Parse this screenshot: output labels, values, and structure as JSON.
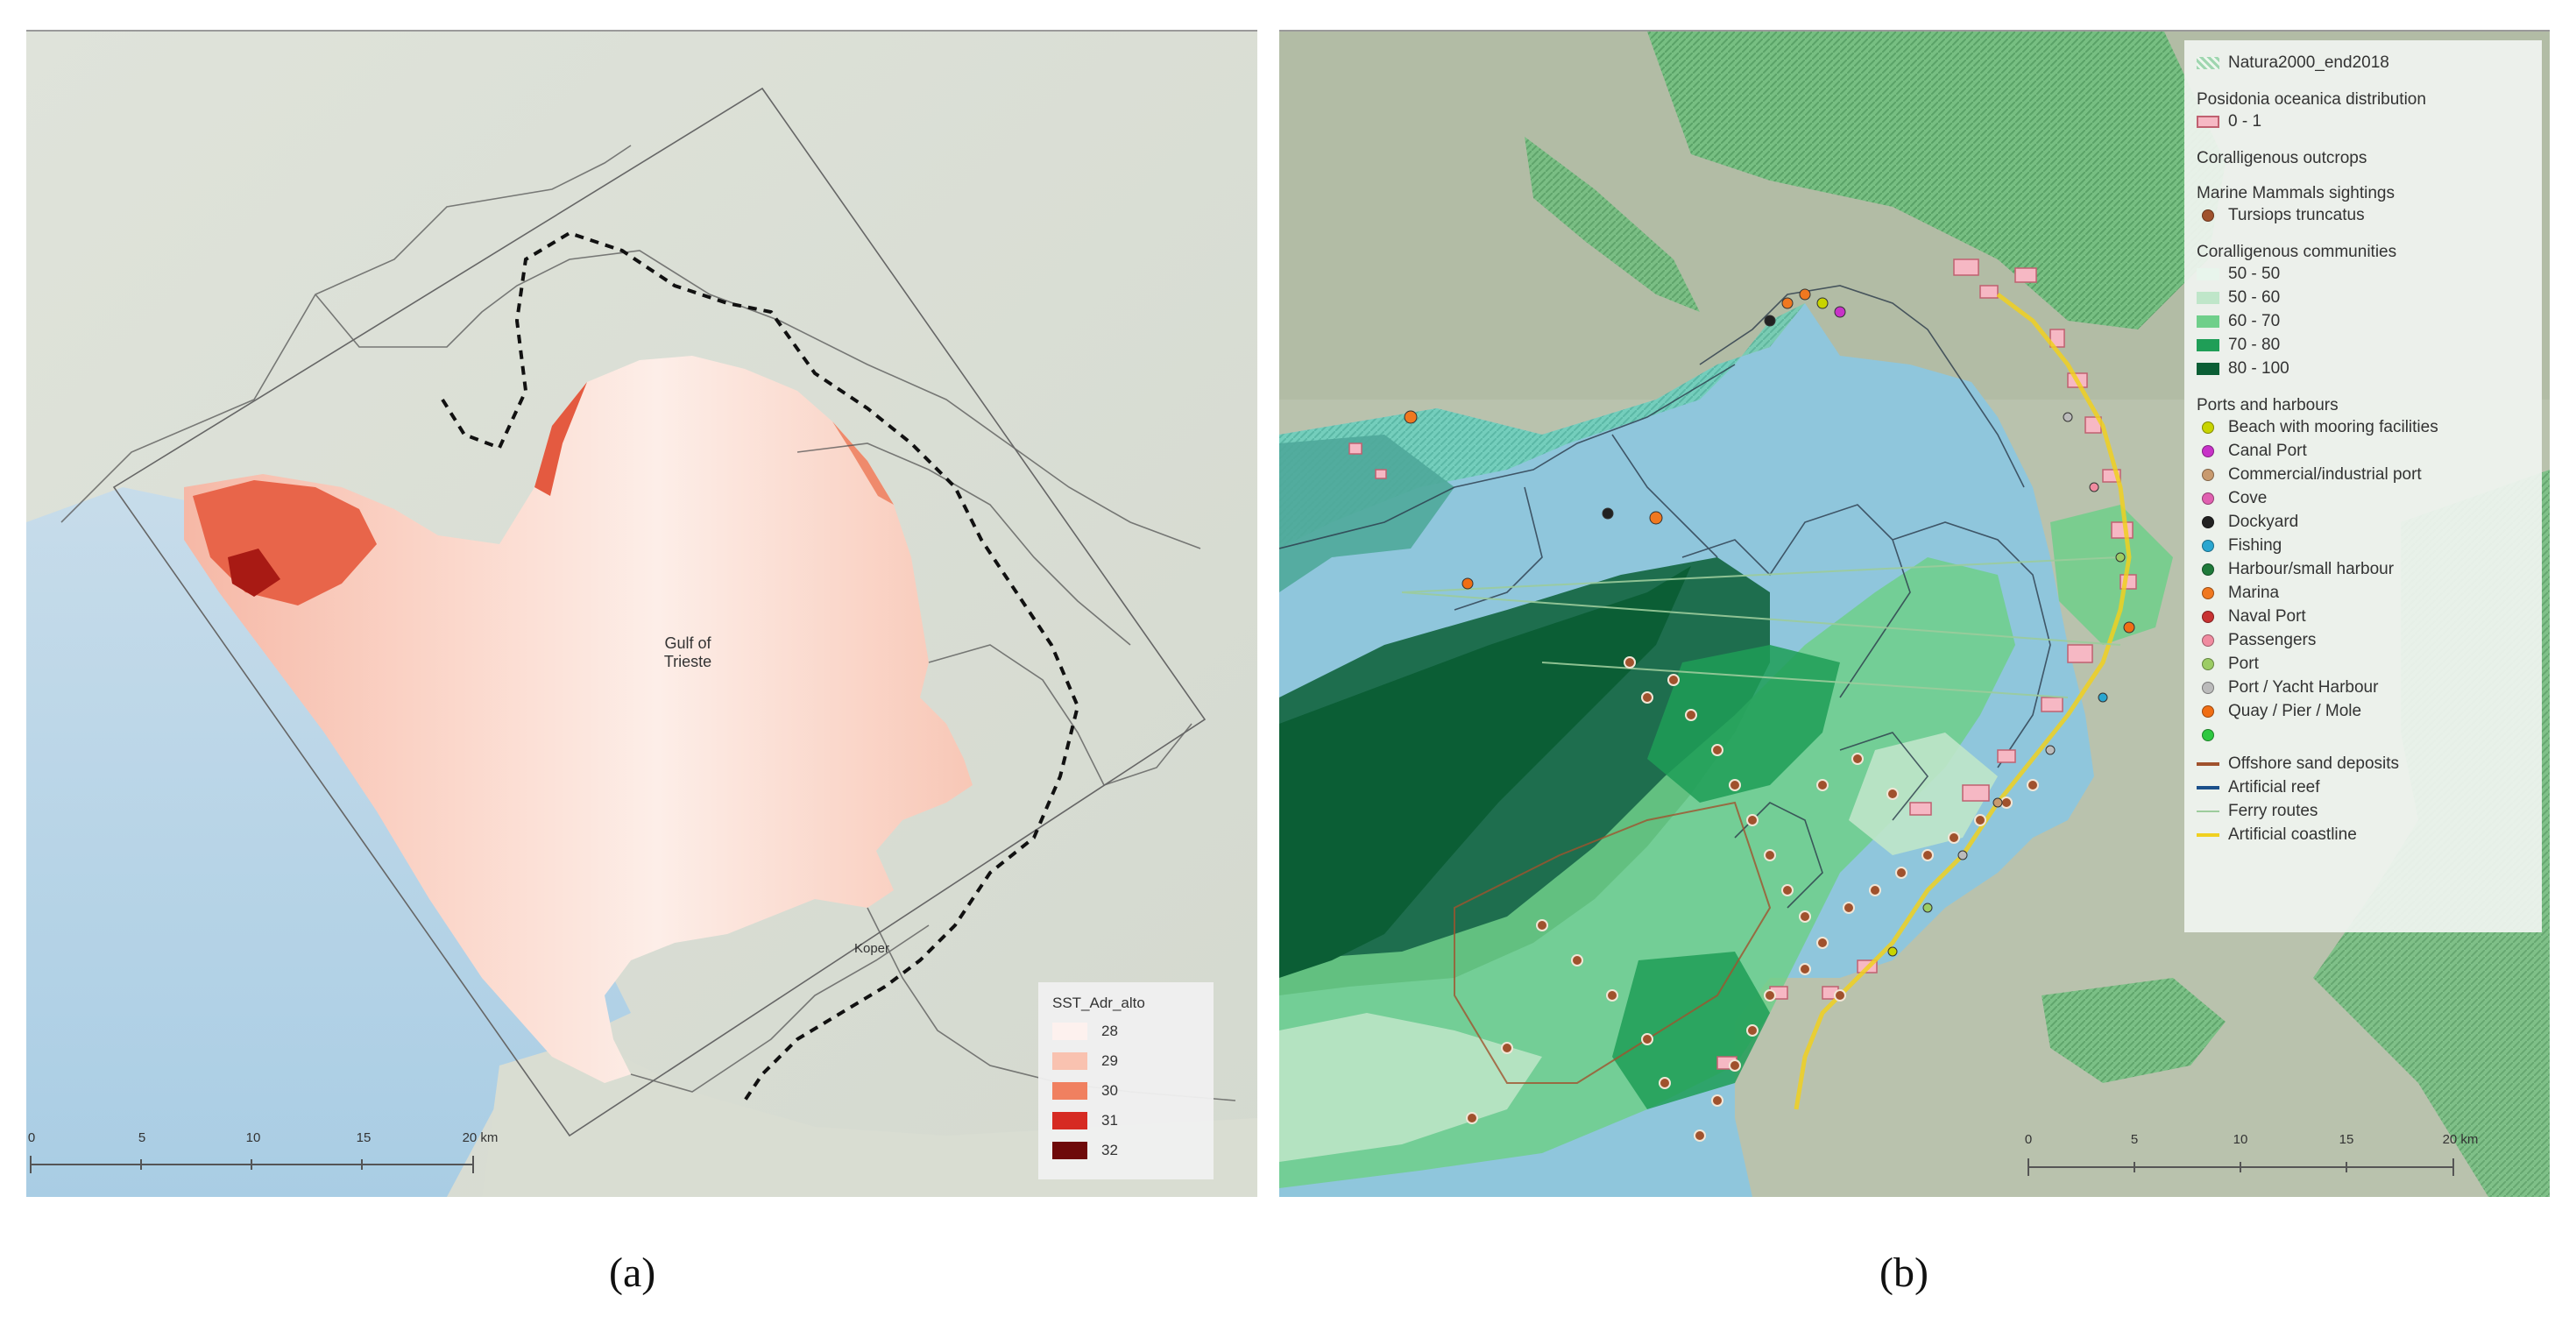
{
  "panel_a": {
    "place_label_gulf_1": "Gulf of",
    "place_label_gulf_2": "Trieste",
    "place_label_town": "Koper",
    "legend": {
      "title": "SST_Adr_alto",
      "items": [
        {
          "label": "28",
          "color": "#fdf1ee"
        },
        {
          "label": "29",
          "color": "#f9c2b0"
        },
        {
          "label": "30",
          "color": "#f08060"
        },
        {
          "label": "31",
          "color": "#d62a22"
        },
        {
          "label": "32",
          "color": "#6e0a0a"
        }
      ]
    },
    "scale_bar": {
      "ticks": [
        "0",
        "5",
        "10",
        "15",
        "20 km"
      ]
    },
    "caption": "(a)"
  },
  "panel_b": {
    "legend": {
      "natura": {
        "label": "Natura2000_end2018",
        "color": "#9fd6b0"
      },
      "posidonia": {
        "title": "Posidonia oceanica distribution",
        "items": [
          {
            "label": "0 - 1",
            "color": "#f6b8c4"
          }
        ]
      },
      "coralligenous_outcrops": {
        "title": "Coralligenous outcrops"
      },
      "mammals": {
        "title": "Marine Mammals sightings",
        "items": [
          {
            "label": "Tursiops truncatus",
            "color": "#a0522d"
          }
        ]
      },
      "coralligenous_communities": {
        "title": "Coralligenous communities",
        "items": [
          {
            "label": "50 - 50",
            "color": "#e8f5ec"
          },
          {
            "label": "50 - 60",
            "color": "#bfe6c9"
          },
          {
            "label": "60 - 70",
            "color": "#6fcf8a"
          },
          {
            "label": "70 - 80",
            "color": "#1f9e57"
          },
          {
            "label": "80 - 100",
            "color": "#0b5e35"
          }
        ]
      },
      "ports": {
        "title": "Ports and harbours",
        "items": [
          {
            "label": "Beach with mooring facilities",
            "color": "#c8d400"
          },
          {
            "label": "Canal Port",
            "color": "#c832c8"
          },
          {
            "label": "Commercial/industrial port",
            "color": "#c89a6e"
          },
          {
            "label": "Cove",
            "color": "#e060b0"
          },
          {
            "label": "Dockyard",
            "color": "#222222"
          },
          {
            "label": "Fishing",
            "color": "#2aa6d0"
          },
          {
            "label": "Harbour/small harbour",
            "color": "#1f7a3a"
          },
          {
            "label": "Marina",
            "color": "#f07820"
          },
          {
            "label": "Naval Port",
            "color": "#c83232"
          },
          {
            "label": "Passengers",
            "color": "#f08ca0"
          },
          {
            "label": "Port",
            "color": "#9ccc64"
          },
          {
            "label": "Port / Yacht Harbour",
            "color": "#bbbbbb"
          },
          {
            "label": "Quay / Pier / Mole",
            "color": "#f06e14"
          },
          {
            "label": "",
            "color": "#2ec840"
          }
        ]
      },
      "lines": [
        {
          "label": "Offshore sand deposits",
          "color": "#a0522d"
        },
        {
          "label": "Artificial reef",
          "color": "#1a4f8a"
        },
        {
          "label": "Ferry routes",
          "color": "#9ccc9c"
        },
        {
          "label": "Artificial coastline",
          "color": "#f0d020"
        }
      ]
    },
    "scale_bar": {
      "ticks": [
        "0",
        "5",
        "10",
        "15",
        "20 km"
      ]
    },
    "caption": "(b)"
  }
}
